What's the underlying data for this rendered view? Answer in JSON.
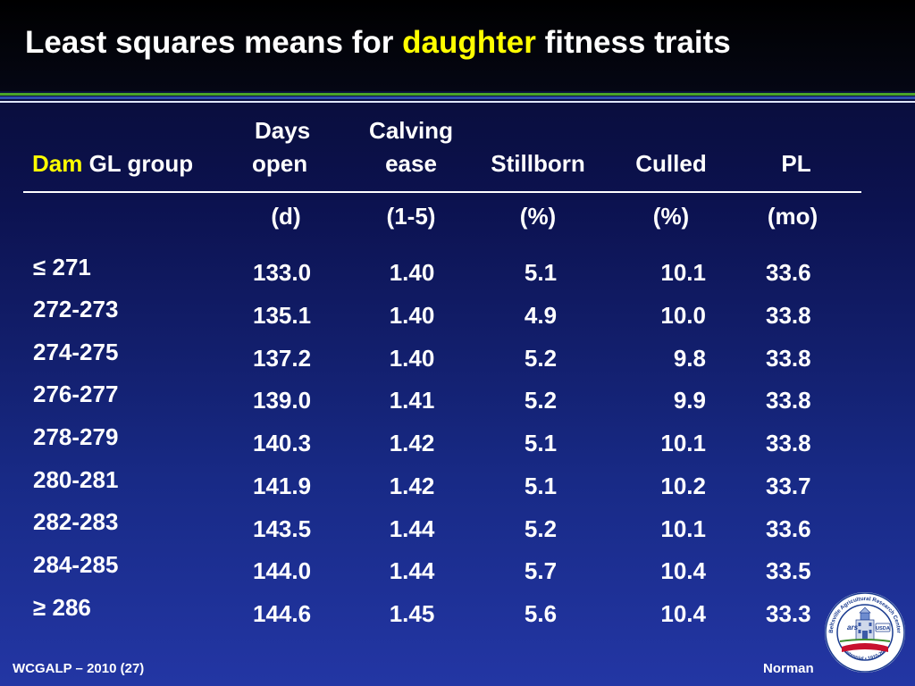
{
  "title": {
    "prefix": "Least squares means for ",
    "highlight": "daughter",
    "suffix": " fitness traits"
  },
  "colors": {
    "highlight": "#ffff00",
    "rule_green": "#4aa329",
    "rule_blue": "#2f4db0"
  },
  "table": {
    "group_header": {
      "highlight": "Dam",
      "rest": " GL group"
    },
    "columns": [
      {
        "line1": "Days",
        "line2": "open",
        "unit": "(d)"
      },
      {
        "line1": "Calving",
        "line2": "ease",
        "unit": "(1-5)"
      },
      {
        "line1": "",
        "line2": "Stillborn",
        "unit": "(%)"
      },
      {
        "line1": "",
        "line2": "Culled",
        "unit": "(%)"
      },
      {
        "line1": "",
        "line2": "PL",
        "unit": "(mo)"
      }
    ],
    "groups": [
      "≤ 271",
      "272-273",
      "274-275",
      "276-277",
      "278-279",
      "280-281",
      "282-283",
      "284-285",
      "≥ 286"
    ],
    "rows": [
      [
        "133.0",
        "1.40",
        "5.1",
        "10.1",
        "33.6"
      ],
      [
        "135.1",
        "1.40",
        "4.9",
        "10.0",
        "33.8"
      ],
      [
        "137.2",
        "1.40",
        "5.2",
        "9.8",
        "33.8"
      ],
      [
        "139.0",
        "1.41",
        "5.2",
        "9.9",
        "33.8"
      ],
      [
        "140.3",
        "1.42",
        "5.1",
        "10.1",
        "33.8"
      ],
      [
        "141.9",
        "1.42",
        "5.1",
        "10.2",
        "33.7"
      ],
      [
        "143.5",
        "1.44",
        "5.2",
        "10.1",
        "33.6"
      ],
      [
        "144.0",
        "1.44",
        "5.7",
        "10.4",
        "33.5"
      ],
      [
        "144.6",
        "1.45",
        "5.6",
        "10.4",
        "33.3"
      ]
    ]
  },
  "footer": {
    "left": "WCGALP – 2010 (27)",
    "right": "Norman"
  },
  "logo": {
    "ring_text_top": "Beltsville Agricultural Research Center",
    "ring_text_bottom": "Centennial • 1910-2010",
    "badge": "USDA",
    "icon": "barc-centennial-seal"
  }
}
